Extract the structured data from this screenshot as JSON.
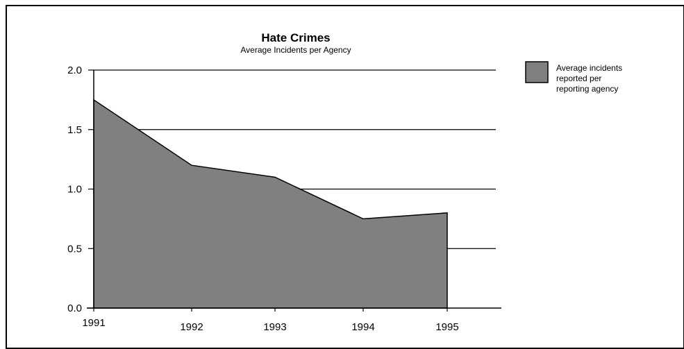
{
  "chart_data": {
    "type": "area",
    "title": "Hate Crimes",
    "subtitle": "Average Incidents per Agency",
    "xlabel": "",
    "ylabel": "",
    "x": [
      "1991",
      "1992",
      "1993",
      "1994",
      "1995"
    ],
    "series": [
      {
        "name": "Average incidents reported per reporting agency",
        "legend_lines": [
          "Average incidents",
          "reported per",
          "reporting agency"
        ],
        "values": [
          1.75,
          1.2,
          1.1,
          0.75,
          0.8
        ],
        "color": "#808080"
      }
    ],
    "ylim": [
      0,
      2
    ],
    "yticks": [
      "0.0",
      "0.5",
      "1.0",
      "1.5",
      "2.0"
    ],
    "grid": true,
    "legend_position": "top-right"
  }
}
